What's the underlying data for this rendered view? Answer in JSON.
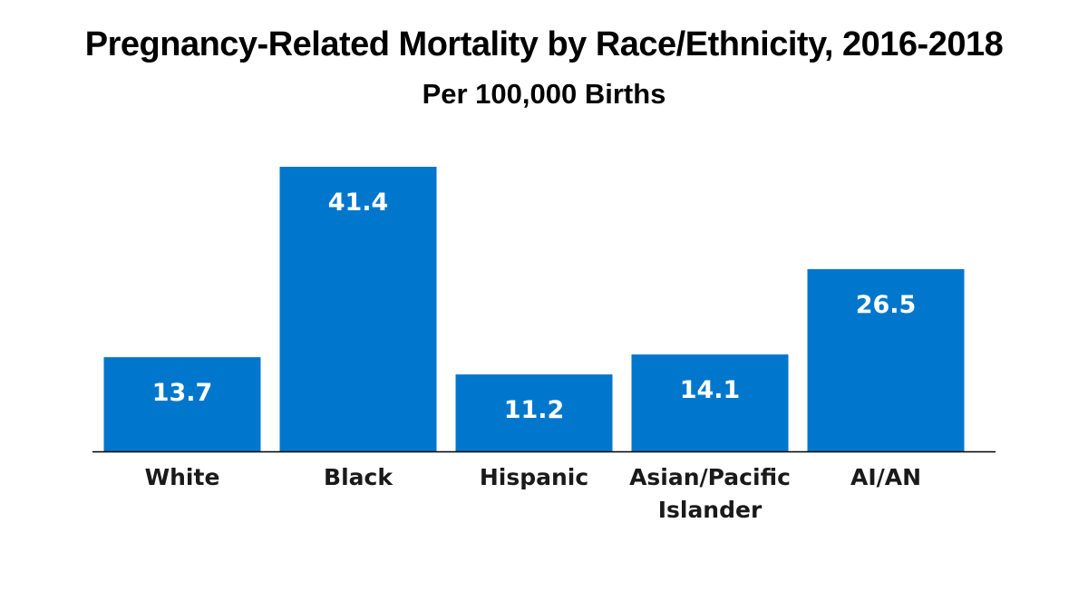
{
  "chart_data": {
    "type": "bar",
    "title": "Pregnancy-Related Mortality by Race/Ethnicity, 2016-2018",
    "subtitle": "Per 100,000 Births",
    "xlabel": "",
    "ylabel": "",
    "categories": [
      "White",
      "Black",
      "Hispanic",
      "Asian/Pacific Islander",
      "AI/AN"
    ],
    "category_lines": [
      [
        "White"
      ],
      [
        "Black"
      ],
      [
        "Hispanic"
      ],
      [
        "Asian/Pacific",
        "Islander"
      ],
      [
        "AI/AN"
      ]
    ],
    "values": [
      13.7,
      41.4,
      11.2,
      14.1,
      26.5
    ],
    "data_labels": [
      "13.7",
      "41.4",
      "11.2",
      "14.1",
      "26.5"
    ],
    "ylim": [
      0,
      41.4
    ],
    "grid": false,
    "legend": "none",
    "bar_color": "#0077cc",
    "axis_color": "#000000"
  }
}
